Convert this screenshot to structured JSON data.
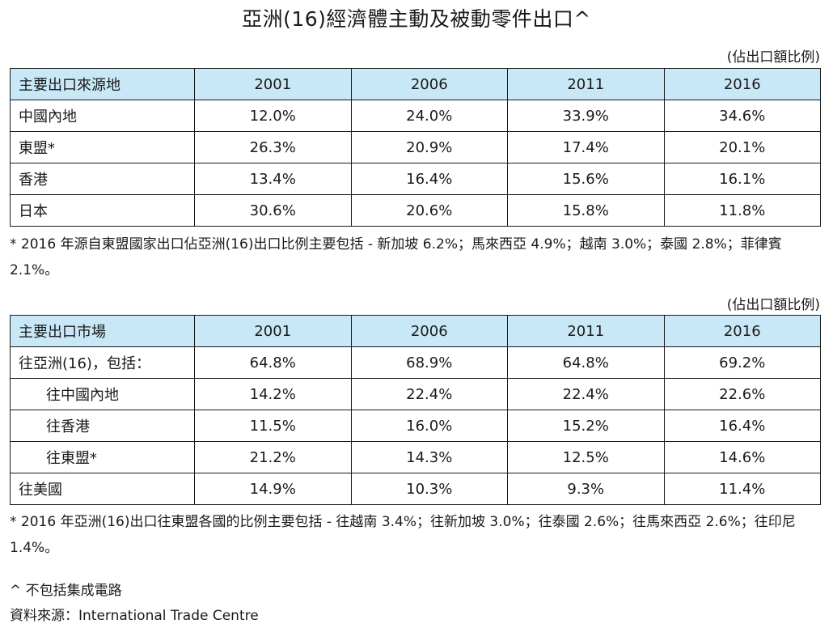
{
  "title": "亞洲(16)經濟體主動及被動零件出口^",
  "table1": {
    "unit_note": "(佔出口額比例)",
    "headers": [
      "主要出口來源地",
      "2001",
      "2006",
      "2011",
      "2016"
    ],
    "rows": [
      {
        "label": "中國內地",
        "values": [
          "12.0%",
          "24.0%",
          "33.9%",
          "34.6%"
        ]
      },
      {
        "label": "東盟*",
        "values": [
          "26.3%",
          "20.9%",
          "17.4%",
          "20.1%"
        ]
      },
      {
        "label": "香港",
        "values": [
          "13.4%",
          "16.4%",
          "15.6%",
          "16.1%"
        ]
      },
      {
        "label": "日本",
        "values": [
          "30.6%",
          "20.6%",
          "15.8%",
          "11.8%"
        ]
      }
    ],
    "footnote": "* 2016 年源自東盟國家出口佔亞洲(16)出口比例主要包括 - 新加坡 6.2%；馬來西亞 4.9%；越南 3.0%；泰國 2.8%；菲律賓 2.1%。"
  },
  "table2": {
    "unit_note": "(佔出口額比例)",
    "headers": [
      "主要出口市場",
      "2001",
      "2006",
      "2011",
      "2016"
    ],
    "rows": [
      {
        "label": "往亞洲(16)，包括：",
        "values": [
          "64.8%",
          "68.9%",
          "64.8%",
          "69.2%"
        ]
      },
      {
        "label": "往中國內地",
        "values": [
          "14.2%",
          "22.4%",
          "22.4%",
          "22.6%"
        ]
      },
      {
        "label": "往香港",
        "values": [
          "11.5%",
          "16.0%",
          "15.2%",
          "16.4%"
        ]
      },
      {
        "label": "往東盟*",
        "values": [
          "21.2%",
          "14.3%",
          "12.5%",
          "14.6%"
        ]
      },
      {
        "label": "往美國",
        "values": [
          "14.9%",
          "10.3%",
          "9.3%",
          "11.4%"
        ]
      }
    ],
    "footnote": "* 2016 年亞洲(16)出口往東盟各國的比例主要包括 - 往越南 3.4%；往新加坡 3.0%；往泰國 2.6%；往馬來西亞 2.6%；往印尼 1.4%。"
  },
  "notes": {
    "caret_note": "^ 不包括集成電路",
    "source": "資料來源：International Trade Centre"
  }
}
